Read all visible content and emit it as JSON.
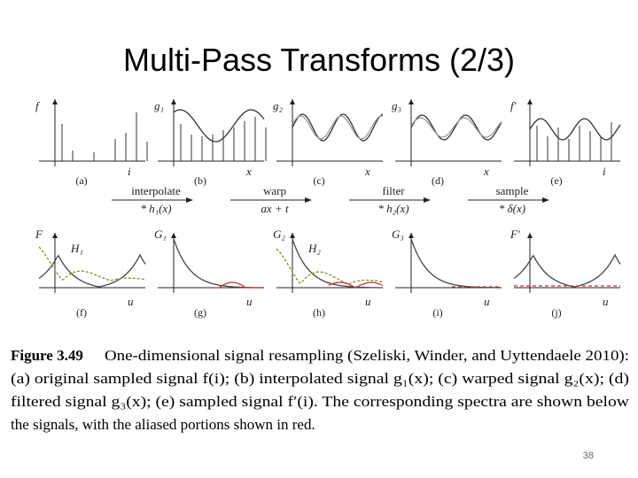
{
  "title": "Multi-Pass Transforms (2/3)",
  "figure": {
    "top_panels": [
      {
        "y_label": "f",
        "x_label": "i",
        "tag": "(a)"
      },
      {
        "y_label": "g₁",
        "x_label": "x",
        "tag": "(b)"
      },
      {
        "y_label": "g₂",
        "x_label": "x",
        "tag": "(c)"
      },
      {
        "y_label": "g₃",
        "x_label": "x",
        "tag": "(d)"
      },
      {
        "y_label": "f′",
        "x_label": "i",
        "tag": "(e)"
      }
    ],
    "operations": [
      {
        "name": "interpolate",
        "formula": "* h₁(x)"
      },
      {
        "name": "warp",
        "formula": "ax + t"
      },
      {
        "name": "filter",
        "formula": "* h₂(x)"
      },
      {
        "name": "sample",
        "formula": "* δ(x)"
      }
    ],
    "bottom_panels": [
      {
        "y_label": "F",
        "filter_label": "H₁",
        "x_label": "u",
        "tag": "(f)"
      },
      {
        "y_label": "G₁",
        "x_label": "u",
        "tag": "(g)"
      },
      {
        "y_label": "G₂",
        "filter_label": "H₂",
        "x_label": "u",
        "tag": "(h)"
      },
      {
        "y_label": "G₃",
        "x_label": "u",
        "tag": "(i)"
      },
      {
        "y_label": "F′",
        "x_label": "u",
        "tag": "(j)"
      }
    ],
    "caption": {
      "label": "Figure 3.49",
      "lines": [
        "One-dimensional signal resampling (Szeliski, Winder, and Uyttendaele 2010):",
        "(a) original sampled signal f(i); (b) interpolated signal g₁(x); (c) warped signal g₂(x); (d)",
        "filtered signal g₃(x); (e) sampled signal f′(i). The corresponding spectra are shown below",
        "the signals, with the aliased portions shown in red."
      ]
    }
  },
  "page_number": "38"
}
